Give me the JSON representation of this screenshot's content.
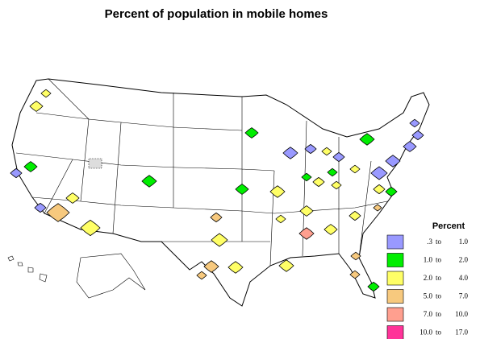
{
  "title": "Percent of population in mobile homes",
  "legend": {
    "title": "Percent",
    "separator": "to",
    "items": [
      {
        "from": ".3",
        "to": "1.0",
        "color": "#9999ff"
      },
      {
        "from": "1.0",
        "to": "2.0",
        "color": "#00ee00"
      },
      {
        "from": "2.0",
        "to": "4.0",
        "color": "#ffff66"
      },
      {
        "from": "5.0",
        "to": "7.0",
        "color": "#f7c97e"
      },
      {
        "from": "7.0",
        "to": "10.0",
        "color": "#ff9f8f"
      },
      {
        "from": "10.0",
        "to": "17.0",
        "color": "#ff3399"
      }
    ]
  }
}
